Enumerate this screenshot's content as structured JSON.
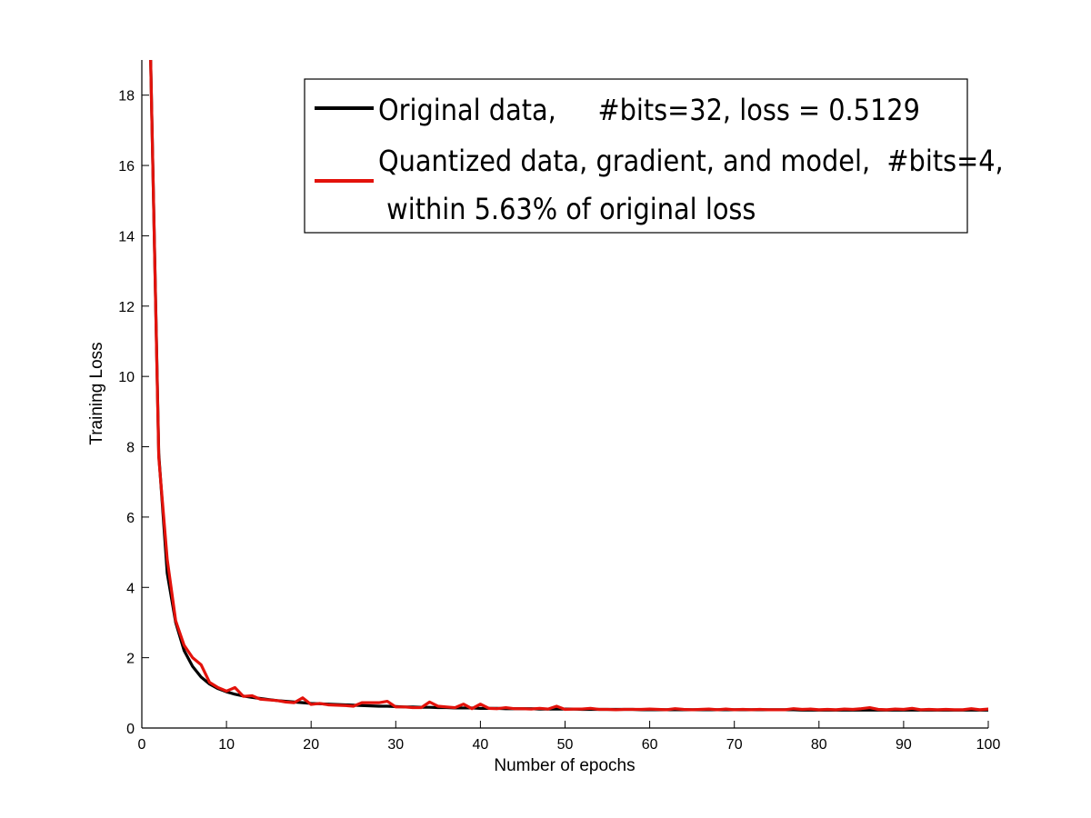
{
  "chart_data": {
    "type": "line",
    "title": "",
    "xlabel": "Number of epochs",
    "ylabel": "Training Loss",
    "xlim": [
      0,
      100
    ],
    "ylim": [
      0,
      19
    ],
    "xticks": [
      0,
      10,
      20,
      30,
      40,
      50,
      60,
      70,
      80,
      90,
      100
    ],
    "yticks": [
      0,
      2,
      4,
      6,
      8,
      10,
      12,
      14,
      16,
      18
    ],
    "grid": false,
    "legend_position": "top-right",
    "legend": [
      {
        "lines": [
          "Original data,     #bits=32, loss = 0.5129"
        ]
      },
      {
        "lines": [
          "Quantized data, gradient, and model,  #bits=4,",
          " within 5.63% of original loss"
        ]
      }
    ],
    "series": [
      {
        "name": "Original data, #bits=32, loss = 0.5129",
        "color": "#000000",
        "x": [
          1,
          2,
          3,
          4,
          5,
          6,
          7,
          8,
          9,
          10,
          11,
          12,
          13,
          14,
          15,
          16,
          17,
          18,
          19,
          20,
          21,
          22,
          23,
          24,
          25,
          26,
          27,
          28,
          29,
          30,
          31,
          32,
          33,
          34,
          35,
          36,
          37,
          38,
          39,
          40,
          41,
          42,
          43,
          44,
          45,
          46,
          47,
          48,
          49,
          50,
          51,
          52,
          53,
          54,
          55,
          56,
          57,
          58,
          59,
          60,
          61,
          62,
          63,
          64,
          65,
          66,
          67,
          68,
          69,
          70,
          71,
          72,
          73,
          74,
          75,
          76,
          77,
          78,
          79,
          80,
          81,
          82,
          83,
          84,
          85,
          86,
          87,
          88,
          89,
          90,
          91,
          92,
          93,
          94,
          95,
          96,
          97,
          98,
          99,
          100
        ],
        "y": [
          19.5,
          7.8,
          4.4,
          3.0,
          2.2,
          1.75,
          1.45,
          1.25,
          1.12,
          1.03,
          0.96,
          0.91,
          0.87,
          0.84,
          0.81,
          0.78,
          0.76,
          0.74,
          0.72,
          0.7,
          0.69,
          0.68,
          0.67,
          0.66,
          0.65,
          0.64,
          0.63,
          0.62,
          0.62,
          0.61,
          0.6,
          0.6,
          0.59,
          0.59,
          0.58,
          0.58,
          0.57,
          0.57,
          0.57,
          0.56,
          0.56,
          0.56,
          0.55,
          0.55,
          0.55,
          0.55,
          0.54,
          0.54,
          0.54,
          0.54,
          0.54,
          0.53,
          0.53,
          0.53,
          0.53,
          0.53,
          0.53,
          0.53,
          0.52,
          0.52,
          0.52,
          0.52,
          0.52,
          0.52,
          0.52,
          0.52,
          0.52,
          0.52,
          0.52,
          0.52,
          0.52,
          0.52,
          0.52,
          0.52,
          0.52,
          0.52,
          0.52,
          0.51,
          0.51,
          0.51,
          0.51,
          0.51,
          0.51,
          0.51,
          0.51,
          0.51,
          0.51,
          0.51,
          0.51,
          0.51,
          0.51,
          0.51,
          0.51,
          0.51,
          0.51,
          0.51,
          0.51,
          0.51,
          0.51,
          0.51
        ]
      },
      {
        "name": "Quantized data, gradient, and model, #bits=4, within 5.63% of original loss",
        "color": "#e3120b",
        "x": [
          1,
          2,
          3,
          4,
          5,
          6,
          7,
          8,
          9,
          10,
          11,
          12,
          13,
          14,
          15,
          16,
          17,
          18,
          19,
          20,
          21,
          22,
          23,
          24,
          25,
          26,
          27,
          28,
          29,
          30,
          31,
          32,
          33,
          34,
          35,
          36,
          37,
          38,
          39,
          40,
          41,
          42,
          43,
          44,
          45,
          46,
          47,
          48,
          49,
          50,
          51,
          52,
          53,
          54,
          55,
          56,
          57,
          58,
          59,
          60,
          61,
          62,
          63,
          64,
          65,
          66,
          67,
          68,
          69,
          70,
          71,
          72,
          73,
          74,
          75,
          76,
          77,
          78,
          79,
          80,
          81,
          82,
          83,
          84,
          85,
          86,
          87,
          88,
          89,
          90,
          91,
          92,
          93,
          94,
          95,
          96,
          97,
          98,
          99,
          100
        ],
        "y": [
          19.5,
          7.7,
          4.8,
          3.05,
          2.35,
          2.0,
          1.8,
          1.3,
          1.15,
          1.05,
          1.15,
          0.9,
          0.92,
          0.82,
          0.8,
          0.78,
          0.74,
          0.72,
          0.86,
          0.67,
          0.7,
          0.66,
          0.65,
          0.64,
          0.62,
          0.72,
          0.72,
          0.72,
          0.76,
          0.6,
          0.6,
          0.58,
          0.58,
          0.74,
          0.62,
          0.6,
          0.58,
          0.68,
          0.55,
          0.68,
          0.56,
          0.55,
          0.58,
          0.55,
          0.55,
          0.54,
          0.56,
          0.54,
          0.62,
          0.53,
          0.54,
          0.54,
          0.56,
          0.53,
          0.53,
          0.52,
          0.53,
          0.53,
          0.53,
          0.54,
          0.53,
          0.52,
          0.55,
          0.53,
          0.52,
          0.53,
          0.54,
          0.52,
          0.54,
          0.52,
          0.53,
          0.52,
          0.53,
          0.52,
          0.52,
          0.52,
          0.55,
          0.53,
          0.54,
          0.52,
          0.53,
          0.52,
          0.54,
          0.53,
          0.55,
          0.58,
          0.53,
          0.52,
          0.54,
          0.53,
          0.56,
          0.52,
          0.53,
          0.52,
          0.53,
          0.52,
          0.52,
          0.55,
          0.52,
          0.54
        ]
      }
    ]
  }
}
